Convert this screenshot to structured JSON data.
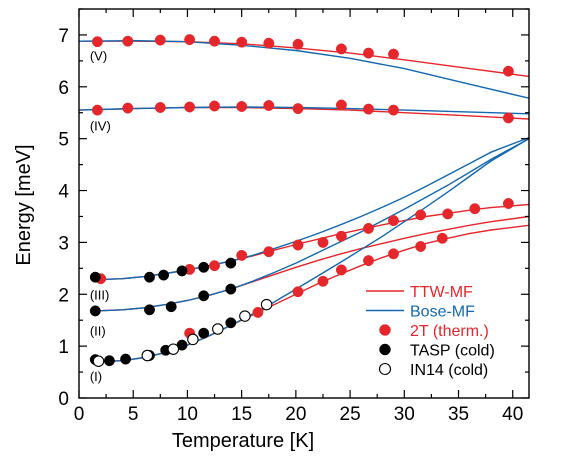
{
  "colors": {
    "ttw": "#e5262b",
    "bose": "#1368b0",
    "therm": "#e5262b",
    "tasp": "#000000",
    "in14_edge": "#000000",
    "in14_fill": "#ffffff"
  },
  "chart_data": {
    "type": "scatter",
    "xlabel": "Temperature [K]",
    "ylabel": "Energy [meV]",
    "xlim": [
      0,
      41.5
    ],
    "ylim": [
      0,
      7.5
    ],
    "xticks": [
      0,
      5,
      10,
      15,
      20,
      25,
      30,
      35,
      40
    ],
    "yticks": [
      0,
      1,
      2,
      3,
      4,
      5,
      6,
      7
    ],
    "grid": false,
    "legend_placement": "bottom-right",
    "branch_labels": [
      {
        "text": "(V)",
        "x": 1.0,
        "y": 6.6
      },
      {
        "text": "(IV)",
        "x": 1.0,
        "y": 5.25
      },
      {
        "text": "(III)",
        "x": 1.0,
        "y": 2.0
      },
      {
        "text": "(II)",
        "x": 1.0,
        "y": 1.3
      },
      {
        "text": "(I)",
        "x": 1.0,
        "y": 0.42
      }
    ],
    "legend": [
      {
        "label": "TTW-MF",
        "kind": "line",
        "color": "#e5262b"
      },
      {
        "label": "Bose-MF",
        "kind": "line",
        "color": "#1368b0"
      },
      {
        "label": "2T (therm.)",
        "kind": "marker",
        "color": "#e5262b",
        "filled": true
      },
      {
        "label": "TASP (cold)",
        "kind": "marker",
        "color": "#000000",
        "filled": true
      },
      {
        "label": "IN14 (cold)",
        "kind": "marker",
        "color": "#000000",
        "filled": false
      }
    ],
    "lines": [
      {
        "name": "TTW-MF",
        "branch": "V",
        "color": "#e5262b",
        "x": [
          0,
          5,
          10,
          15,
          20,
          25,
          30,
          35,
          41.5
        ],
        "y": [
          6.88,
          6.88,
          6.87,
          6.83,
          6.75,
          6.65,
          6.52,
          6.38,
          6.2
        ]
      },
      {
        "name": "Bose-MF",
        "branch": "V",
        "color": "#1368b0",
        "x": [
          0,
          5,
          10,
          15,
          20,
          25,
          30,
          35,
          41.5
        ],
        "y": [
          6.88,
          6.89,
          6.87,
          6.8,
          6.7,
          6.55,
          6.35,
          6.1,
          5.78
        ]
      },
      {
        "name": "TTW-MF",
        "branch": "IV",
        "color": "#e5262b",
        "x": [
          0,
          5,
          10,
          15,
          20,
          25,
          30,
          35,
          41.5
        ],
        "y": [
          5.55,
          5.58,
          5.6,
          5.6,
          5.58,
          5.55,
          5.5,
          5.45,
          5.38
        ]
      },
      {
        "name": "Bose-MF",
        "branch": "IV",
        "color": "#1368b0",
        "x": [
          0,
          5,
          10,
          15,
          20,
          25,
          30,
          35,
          41.5
        ],
        "y": [
          5.55,
          5.58,
          5.6,
          5.61,
          5.6,
          5.58,
          5.55,
          5.52,
          5.48
        ]
      },
      {
        "name": "TTW-MF",
        "branch": "III",
        "color": "#e5262b",
        "x": [
          1.5,
          4,
          6,
          8,
          10,
          12,
          14,
          16,
          18,
          20,
          22,
          24,
          26,
          28,
          30,
          32,
          34,
          36,
          38,
          41.5
        ],
        "y": [
          2.28,
          2.3,
          2.34,
          2.4,
          2.47,
          2.55,
          2.64,
          2.74,
          2.85,
          2.96,
          3.06,
          3.16,
          3.25,
          3.34,
          3.42,
          3.5,
          3.56,
          3.62,
          3.67,
          3.73
        ]
      },
      {
        "name": "Bose-MF",
        "branch": "III",
        "color": "#1368b0",
        "x": [
          1.5,
          4,
          6,
          8,
          10,
          12,
          14,
          16,
          18,
          20,
          22,
          24,
          26,
          28,
          30,
          32,
          34,
          36,
          38,
          41.5
        ],
        "y": [
          2.28,
          2.3,
          2.34,
          2.4,
          2.47,
          2.55,
          2.64,
          2.75,
          2.88,
          3.02,
          3.17,
          3.33,
          3.5,
          3.68,
          3.87,
          4.08,
          4.3,
          4.52,
          4.74,
          5.02
        ]
      },
      {
        "name": "TTW-MF",
        "branch": "II",
        "color": "#e5262b",
        "x": [
          1.5,
          4,
          6,
          8,
          10,
          12,
          14,
          16,
          18,
          20,
          22,
          24,
          26,
          28,
          30,
          32,
          34,
          36,
          38,
          41.5
        ],
        "y": [
          1.68,
          1.7,
          1.74,
          1.8,
          1.88,
          1.98,
          2.1,
          2.24,
          2.38,
          2.52,
          2.65,
          2.77,
          2.88,
          2.98,
          3.08,
          3.17,
          3.25,
          3.33,
          3.4,
          3.5
        ]
      },
      {
        "name": "Bose-MF",
        "branch": "II",
        "color": "#1368b0",
        "x": [
          1.5,
          4,
          6,
          8,
          10,
          12,
          14,
          16,
          18,
          20,
          22,
          24,
          26,
          28,
          30,
          32,
          34,
          36,
          38,
          41.5
        ],
        "y": [
          1.68,
          1.7,
          1.74,
          1.8,
          1.88,
          1.98,
          2.1,
          2.25,
          2.42,
          2.6,
          2.8,
          3.0,
          3.2,
          3.42,
          3.64,
          3.87,
          4.1,
          4.35,
          4.6,
          5.0
        ]
      },
      {
        "name": "TTW-MF",
        "branch": "I",
        "color": "#e5262b",
        "x": [
          1.5,
          4,
          6,
          8,
          10,
          12,
          14,
          16,
          18,
          20,
          22,
          24,
          26,
          28,
          30,
          32,
          34,
          36,
          38,
          41.5
        ],
        "y": [
          0.7,
          0.72,
          0.78,
          0.88,
          1.02,
          1.2,
          1.4,
          1.6,
          1.8,
          2.0,
          2.2,
          2.38,
          2.55,
          2.71,
          2.85,
          2.98,
          3.08,
          3.17,
          3.24,
          3.33
        ]
      },
      {
        "name": "Bose-MF",
        "branch": "I",
        "color": "#1368b0",
        "x": [
          1.5,
          4,
          6,
          8,
          10,
          12,
          14,
          16,
          18,
          20,
          22,
          24,
          26,
          28,
          30,
          32,
          34,
          36,
          38,
          41.5
        ],
        "y": [
          0.7,
          0.72,
          0.78,
          0.88,
          1.02,
          1.2,
          1.4,
          1.62,
          1.85,
          2.1,
          2.35,
          2.6,
          2.86,
          3.12,
          3.4,
          3.68,
          3.97,
          4.27,
          4.57,
          5.0
        ]
      }
    ],
    "series": [
      {
        "name": "2T (therm.)",
        "marker": "filled",
        "color": "#e5262b",
        "points": [
          {
            "x": 1.7,
            "y": 6.87
          },
          {
            "x": 4.5,
            "y": 6.88
          },
          {
            "x": 7.5,
            "y": 6.9
          },
          {
            "x": 10.2,
            "y": 6.91
          },
          {
            "x": 12.5,
            "y": 6.88
          },
          {
            "x": 15,
            "y": 6.86
          },
          {
            "x": 17.5,
            "y": 6.84
          },
          {
            "x": 20.2,
            "y": 6.82
          },
          {
            "x": 24.2,
            "y": 6.73
          },
          {
            "x": 26.7,
            "y": 6.65
          },
          {
            "x": 29,
            "y": 6.63
          },
          {
            "x": 39.6,
            "y": 6.3
          },
          {
            "x": 1.7,
            "y": 5.55
          },
          {
            "x": 4.5,
            "y": 5.59
          },
          {
            "x": 7.5,
            "y": 5.6
          },
          {
            "x": 10.2,
            "y": 5.61
          },
          {
            "x": 12.5,
            "y": 5.63
          },
          {
            "x": 15,
            "y": 5.62
          },
          {
            "x": 17.5,
            "y": 5.64
          },
          {
            "x": 20.2,
            "y": 5.58
          },
          {
            "x": 24.2,
            "y": 5.65
          },
          {
            "x": 26.7,
            "y": 5.57
          },
          {
            "x": 29,
            "y": 5.55
          },
          {
            "x": 39.6,
            "y": 5.4
          },
          {
            "x": 2.0,
            "y": 2.3
          },
          {
            "x": 10.2,
            "y": 2.48
          },
          {
            "x": 12.5,
            "y": 2.55
          },
          {
            "x": 15,
            "y": 2.75
          },
          {
            "x": 17.5,
            "y": 2.82
          },
          {
            "x": 20.2,
            "y": 2.95
          },
          {
            "x": 22.5,
            "y": 3.0
          },
          {
            "x": 24.2,
            "y": 3.12
          },
          {
            "x": 26.7,
            "y": 3.27
          },
          {
            "x": 29,
            "y": 3.42
          },
          {
            "x": 31.5,
            "y": 3.53
          },
          {
            "x": 34,
            "y": 3.55
          },
          {
            "x": 36.5,
            "y": 3.65
          },
          {
            "x": 39.6,
            "y": 3.75
          },
          {
            "x": 10.2,
            "y": 1.25
          },
          {
            "x": 16.5,
            "y": 1.65
          },
          {
            "x": 20.2,
            "y": 2.05
          },
          {
            "x": 22.5,
            "y": 2.25
          },
          {
            "x": 24.2,
            "y": 2.47
          },
          {
            "x": 26.7,
            "y": 2.65
          },
          {
            "x": 29,
            "y": 2.78
          },
          {
            "x": 31.5,
            "y": 2.92
          },
          {
            "x": 33.5,
            "y": 3.08
          }
        ]
      },
      {
        "name": "TASP (cold)",
        "marker": "filled",
        "color": "#000000",
        "points": [
          {
            "x": 1.5,
            "y": 2.33
          },
          {
            "x": 6.5,
            "y": 2.33
          },
          {
            "x": 7.8,
            "y": 2.37
          },
          {
            "x": 9.5,
            "y": 2.45
          },
          {
            "x": 11.5,
            "y": 2.52
          },
          {
            "x": 14,
            "y": 2.6
          },
          {
            "x": 1.5,
            "y": 1.68
          },
          {
            "x": 6.5,
            "y": 1.7
          },
          {
            "x": 8.5,
            "y": 1.76
          },
          {
            "x": 11.5,
            "y": 1.97
          },
          {
            "x": 14,
            "y": 2.1
          },
          {
            "x": 1.5,
            "y": 0.74
          },
          {
            "x": 2.8,
            "y": 0.72
          },
          {
            "x": 4.3,
            "y": 0.75
          },
          {
            "x": 6.5,
            "y": 0.82
          },
          {
            "x": 8,
            "y": 0.92
          },
          {
            "x": 9.5,
            "y": 1.02
          },
          {
            "x": 11.5,
            "y": 1.25
          },
          {
            "x": 14,
            "y": 1.45
          }
        ]
      },
      {
        "name": "IN14 (cold)",
        "marker": "open",
        "color": "#000000",
        "points": [
          {
            "x": 1.8,
            "y": 0.71
          },
          {
            "x": 6.3,
            "y": 0.82
          },
          {
            "x": 8.7,
            "y": 0.94
          },
          {
            "x": 10.5,
            "y": 1.13
          },
          {
            "x": 12.8,
            "y": 1.33
          },
          {
            "x": 15.3,
            "y": 1.58
          },
          {
            "x": 17.3,
            "y": 1.8
          }
        ]
      }
    ]
  }
}
